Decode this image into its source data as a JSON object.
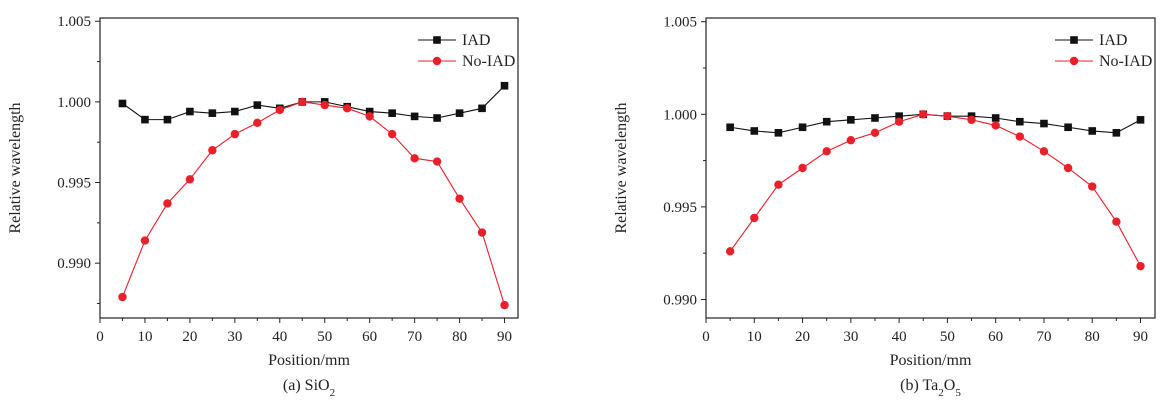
{
  "chart_data": [
    {
      "type": "line",
      "caption": {
        "prefix": "(a) SiO",
        "sub": "2",
        "suffix": ""
      },
      "xlabel": "Position/mm",
      "ylabel": "Relative wavelength",
      "xlim": [
        0,
        93
      ],
      "ylim": [
        0.9866,
        1.0052
      ],
      "xticks": [
        "0",
        "10",
        "20",
        "30",
        "40",
        "50",
        "60",
        "70",
        "80",
        "90"
      ],
      "yticks": [
        "0.990",
        "0.995",
        "1.000",
        "1.005"
      ],
      "legend_position": "top-right",
      "x": [
        5,
        10,
        15,
        20,
        25,
        30,
        35,
        40,
        45,
        50,
        55,
        60,
        65,
        70,
        75,
        80,
        85,
        90
      ],
      "series": [
        {
          "name": "IAD",
          "color": "#111111",
          "marker": "square",
          "values": [
            0.9999,
            0.9989,
            0.9989,
            0.9994,
            0.9993,
            0.9994,
            0.9998,
            0.9996,
            1.0,
            1.0,
            0.9997,
            0.9994,
            0.9993,
            0.9991,
            0.999,
            0.9993,
            0.9996,
            1.001
          ]
        },
        {
          "name": "No-IAD",
          "color": "#e8202a",
          "marker": "circle",
          "values": [
            0.9879,
            0.9914,
            0.9937,
            0.9952,
            0.997,
            0.998,
            0.9987,
            0.9995,
            1.0,
            0.9998,
            0.9996,
            0.9991,
            0.998,
            0.9965,
            0.9963,
            0.994,
            0.9919,
            0.9874
          ]
        }
      ]
    },
    {
      "type": "line",
      "caption": {
        "prefix": "(b) Ta",
        "sub": "2",
        "suffix": "O",
        "sub2": "5"
      },
      "xlabel": "Position/mm",
      "ylabel": "Relative wavelength",
      "xlim": [
        0,
        93
      ],
      "ylim": [
        0.989,
        1.0052
      ],
      "xticks": [
        "0",
        "10",
        "20",
        "30",
        "40",
        "50",
        "60",
        "70",
        "80",
        "90"
      ],
      "yticks": [
        "0.990",
        "0.995",
        "1.000",
        "1.005"
      ],
      "legend_position": "top-right",
      "x": [
        5,
        10,
        15,
        20,
        25,
        30,
        35,
        40,
        45,
        50,
        55,
        60,
        65,
        70,
        75,
        80,
        85,
        90
      ],
      "series": [
        {
          "name": "IAD",
          "color": "#111111",
          "marker": "square",
          "values": [
            0.9993,
            0.9991,
            0.999,
            0.9993,
            0.9996,
            0.9997,
            0.9998,
            0.9999,
            1.0,
            0.9999,
            0.9999,
            0.9998,
            0.9996,
            0.9995,
            0.9993,
            0.9991,
            0.999,
            0.9997
          ]
        },
        {
          "name": "No-IAD",
          "color": "#e8202a",
          "marker": "circle",
          "values": [
            0.9926,
            0.9944,
            0.9962,
            0.9971,
            0.998,
            0.9986,
            0.999,
            0.9996,
            1.0,
            0.9999,
            0.9997,
            0.9994,
            0.9988,
            0.998,
            0.9971,
            0.9961,
            0.9942,
            0.9918
          ]
        }
      ]
    }
  ]
}
